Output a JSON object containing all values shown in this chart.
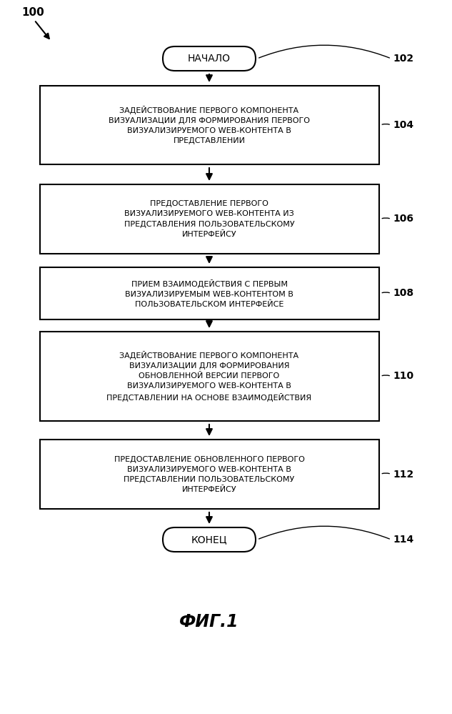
{
  "title": "ФИГ.1",
  "label_100": "100",
  "label_102": "102",
  "label_104": "104",
  "label_106": "106",
  "label_108": "108",
  "label_110": "110",
  "label_112": "112",
  "label_114": "114",
  "start_text": "НАЧАЛО",
  "end_text": "КОНЕЦ",
  "box104_text": "ЗАДЕЙСТВОВАНИЕ ПЕРВОГО КОМПОНЕНТА\nВИЗУАЛИЗАЦИИ ДЛЯ ФОРМИРОВАНИЯ ПЕРВОГО\nВИЗУАЛИЗИРУЕМОГО WEB-КОНТЕНТА В\nПРЕДСТАВЛЕНИИ",
  "box106_text": "ПРЕДОСТАВЛЕНИЕ ПЕРВОГО\nВИЗУАЛИЗИРУЕМОГО WEB-КОНТЕНТА ИЗ\nПРЕДСТАВЛЕНИЯ ПОЛЬЗОВАТЕЛЬСКОМУ\nИНТЕРФЕЙСУ",
  "box108_text": "ПРИЕМ ВЗАИМОДЕЙСТВИЯ С ПЕРВЫМ\nВИЗУАЛИЗИРУЕМЫМ WEB-КОНТЕНТОМ В\nПОЛЬЗОВАТЕЛЬСКОМ ИНТЕРФЕЙСЕ",
  "box110_text": "ЗАДЕЙСТВОВАНИЕ ПЕРВОГО КОМПОНЕНТА\nВИЗУАЛИЗАЦИИ ДЛЯ ФОРМИРОВАНИЯ\nОБНОВЛЕННОЙ ВЕРСИИ ПЕРВОГО\nВИЗУАЛИЗИРУЕМОГО WEB-КОНТЕНТА В\nПРЕДСТАВЛЕНИИ НА ОСНОВЕ ВЗАИМОДЕЙСТВИЯ",
  "box112_text": "ПРЕДОСТАВЛЕНИЕ ОБНОВЛЕННОГО ПЕРВОГО\nВИЗУАЛИЗИРУЕМОГО WEB-КОНТЕНТА В\nПРЕДСТАВЛЕНИИ ПОЛЬЗОВАТЕЛЬСКОМУ\nИНТЕРФЕЙСУ",
  "bg_color": "#ffffff",
  "box_edge_color": "#000000",
  "text_color": "#000000",
  "arrow_color": "#000000",
  "fig_width": 6.33,
  "fig_height": 9.99,
  "dpi": 100
}
